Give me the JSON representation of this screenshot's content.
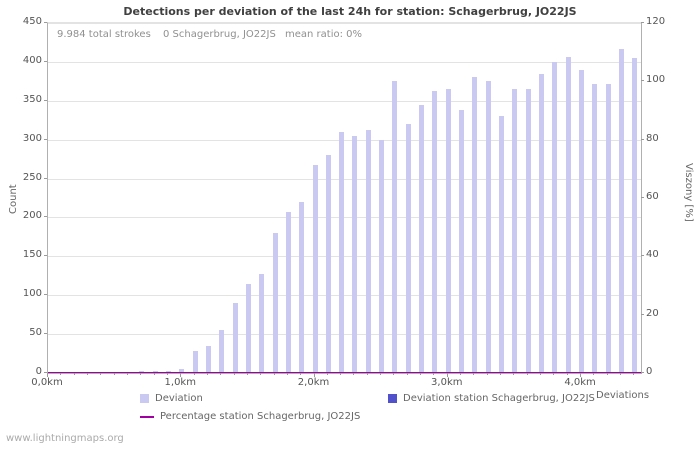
{
  "title": "Detections per deviation of the last 24h for station: Schagerbrug, JO22JS",
  "stats": {
    "total_strokes": "9.984 total strokes",
    "station_strokes": "0 Schagerbrug, JO22JS",
    "mean_ratio": "mean ratio: 0%"
  },
  "watermark": "www.lightningmaps.org",
  "axes": {
    "left_label": "Count",
    "right_label": "Viszony [%]",
    "x_label": "Deviations",
    "left_ticks": [
      0,
      50,
      100,
      150,
      200,
      250,
      300,
      350,
      400,
      450
    ],
    "right_ticks": [
      0,
      20,
      40,
      60,
      80,
      100,
      120
    ],
    "x_ticks": [
      {
        "label": "0,0km",
        "value": 0
      },
      {
        "label": "1,0km",
        "value": 1
      },
      {
        "label": "2,0km",
        "value": 2
      },
      {
        "label": "3,0km",
        "value": 3
      },
      {
        "label": "4,0km",
        "value": 4
      }
    ]
  },
  "legend": {
    "items": [
      {
        "label": "Deviation",
        "color": "#c9c9f1",
        "type": "box"
      },
      {
        "label": "Deviation station Schagerbrug, JO22JS",
        "color": "#5151cc",
        "type": "box"
      },
      {
        "label": "Percentage station Schagerbrug, JO22JS",
        "color": "#a000a0",
        "type": "line"
      }
    ]
  },
  "colors": {
    "bar": "#c9c9f1",
    "station_bar": "#5151cc",
    "percentage_line": "#a000a0",
    "grid": "#e3e3e3",
    "axis": "#b0b0b0",
    "title": "#404040",
    "muted": "#909090"
  },
  "chart_data": {
    "type": "bar",
    "title": "Detections per deviation of the last 24h for station: Schagerbrug, JO22JS",
    "xlabel": "Deviations",
    "ylabel": "Count",
    "y2label": "Viszony [%]",
    "x_unit": "km",
    "xlim": [
      0,
      4.45
    ],
    "ylim": [
      0,
      450
    ],
    "y2lim": [
      0,
      120
    ],
    "grid": true,
    "legend_position": "bottom",
    "x": [
      0,
      0.1,
      0.2,
      0.3,
      0.4,
      0.5,
      0.6,
      0.7,
      0.8,
      0.9,
      1,
      1.1,
      1.2,
      1.3,
      1.4,
      1.5,
      1.6,
      1.7,
      1.8,
      1.9,
      2,
      2.1,
      2.2,
      2.3,
      2.4,
      2.5,
      2.6,
      2.7,
      2.8,
      2.9,
      3,
      3.1,
      3.2,
      3.3,
      3.4,
      3.5,
      3.6,
      3.7,
      3.8,
      3.9,
      4,
      4.1,
      4.2,
      4.3,
      4.4
    ],
    "series": [
      {
        "name": "Deviation",
        "axis": "left",
        "style": "bar",
        "values": [
          1,
          1,
          1,
          1,
          1,
          1,
          1,
          2,
          2,
          3,
          5,
          28,
          35,
          55,
          90,
          115,
          127,
          180,
          207,
          220,
          268,
          280,
          310,
          305,
          312,
          300,
          375,
          320,
          345,
          362,
          365,
          338,
          380,
          375,
          330,
          365,
          365,
          385,
          400,
          406,
          390,
          372,
          372,
          417,
          405
        ]
      },
      {
        "name": "Deviation station Schagerbrug, JO22JS",
        "axis": "left",
        "style": "bar",
        "values": [
          0,
          0,
          0,
          0,
          0,
          0,
          0,
          0,
          0,
          0,
          0,
          0,
          0,
          0,
          0,
          0,
          0,
          0,
          0,
          0,
          0,
          0,
          0,
          0,
          0,
          0,
          0,
          0,
          0,
          0,
          0,
          0,
          0,
          0,
          0,
          0,
          0,
          0,
          0,
          0,
          0,
          0,
          0,
          0,
          0
        ]
      },
      {
        "name": "Percentage station Schagerbrug, JO22JS",
        "axis": "right",
        "style": "line",
        "values": [
          0,
          0,
          0,
          0,
          0,
          0,
          0,
          0,
          0,
          0,
          0,
          0,
          0,
          0,
          0,
          0,
          0,
          0,
          0,
          0,
          0,
          0,
          0,
          0,
          0,
          0,
          0,
          0,
          0,
          0,
          0,
          0,
          0,
          0,
          0,
          0,
          0,
          0,
          0,
          0,
          0,
          0,
          0,
          0,
          0
        ]
      }
    ]
  }
}
